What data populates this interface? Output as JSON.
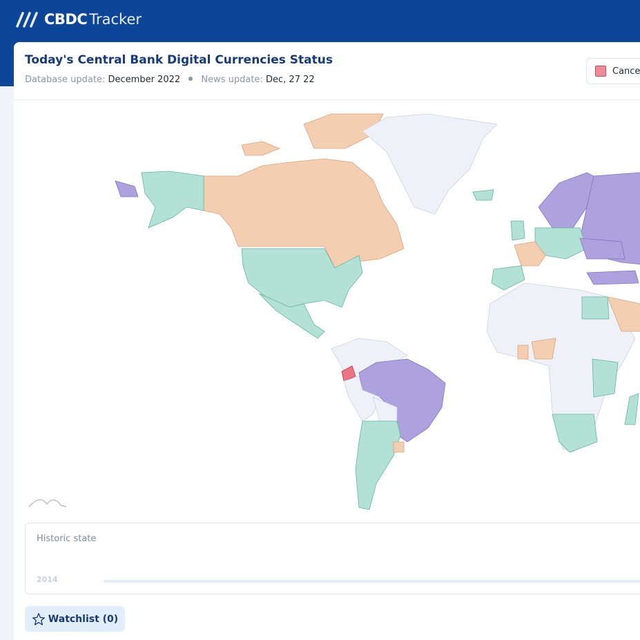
{
  "header": {
    "logo_bold": "CBDC",
    "logo_light": "Tracker"
  },
  "status": {
    "title": "Today's Central Bank Digital Currencies Status",
    "database_label": "Database update:",
    "database_value": "December 2022",
    "news_label": "News update:",
    "news_value": "Dec, 27 22"
  },
  "legend": {
    "items": [
      "Cancel"
    ]
  },
  "timeline": {
    "label": "Historic state",
    "start_year": "2014"
  },
  "watchlist": {
    "label": "Watchlist (0)"
  }
}
